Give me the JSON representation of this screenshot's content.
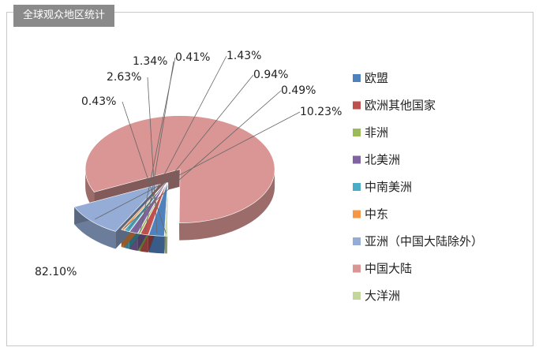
{
  "header": {
    "title": "全球观众地区统计"
  },
  "chart_data": {
    "type": "pie",
    "style": "3d-exploded",
    "legend_position": "right",
    "categories": [
      "欧盟",
      "欧洲其他国家",
      "非洲",
      "北美洲",
      "中南美洲",
      "中东",
      "亚洲（中国大陆除外）",
      "中国大陆",
      "大洋洲"
    ],
    "values": [
      2.63,
      1.34,
      0.41,
      1.43,
      0.94,
      0.49,
      10.23,
      82.1,
      0.43
    ],
    "value_labels": [
      "2.63%",
      "1.34%",
      "0.41%",
      "1.43%",
      "0.94%",
      "0.49%",
      "10.23%",
      "82.10%",
      "0.43%"
    ],
    "colors": [
      "#4f81bd",
      "#c0504d",
      "#9bbb59",
      "#8064a2",
      "#4bacc6",
      "#f79646",
      "#95add6",
      "#d99694",
      "#c3d69b"
    ]
  }
}
